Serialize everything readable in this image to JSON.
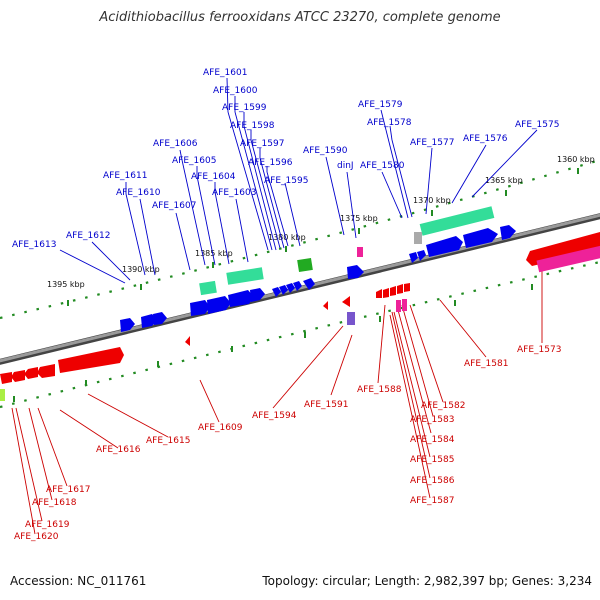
{
  "title": "Acidithiobacillus ferrooxidans ATCC 23270, complete genome",
  "footer": {
    "accession": "Accession: NC_011761",
    "summary": "Topology: circular; Length: 2,982,397 bp; Genes: 3,234"
  },
  "colors": {
    "forward_label": "#0000cc",
    "reverse_label": "#cc0000",
    "backbone": "#808080",
    "tick": "#228b22",
    "blue_gene": "#0000ee",
    "red_gene": "#ee0000",
    "teal_gene": "#33dd99",
    "green_gene": "#22aa22",
    "pink_gene": "#ee2299",
    "grey_gene": "#aaaaaa"
  },
  "kbp_labels": [
    "1360 kbp",
    "1365 kbp",
    "1370 kbp",
    "1375 kbp",
    "1380 kbp",
    "1385 kbp",
    "1390 kbp",
    "1395 kbp"
  ],
  "forward_genes": [
    "AFE_1601",
    "AFE_1600",
    "AFE_1599",
    "AFE_1598",
    "AFE_1597",
    "AFE_1596",
    "AFE_1595",
    "AFE_1606",
    "AFE_1605",
    "AFE_1604",
    "AFE_1603",
    "AFE_1611",
    "AFE_1610",
    "AFE_1607",
    "AFE_1612",
    "AFE_1613",
    "AFE_1590",
    "dinJ",
    "AFE_1579",
    "AFE_1578",
    "AFE_1580",
    "AFE_1577",
    "AFE_1576",
    "AFE_1575"
  ],
  "reverse_genes": [
    "AFE_1573",
    "AFE_1581",
    "AFE_1588",
    "AFE_1582",
    "AFE_1583",
    "AFE_1584",
    "AFE_1585",
    "AFE_1586",
    "AFE_1587",
    "AFE_1591",
    "AFE_1594",
    "AFE_1609",
    "AFE_1615",
    "AFE_1616",
    "AFE_1617",
    "AFE_1618",
    "AFE_1619",
    "AFE_1620"
  ]
}
